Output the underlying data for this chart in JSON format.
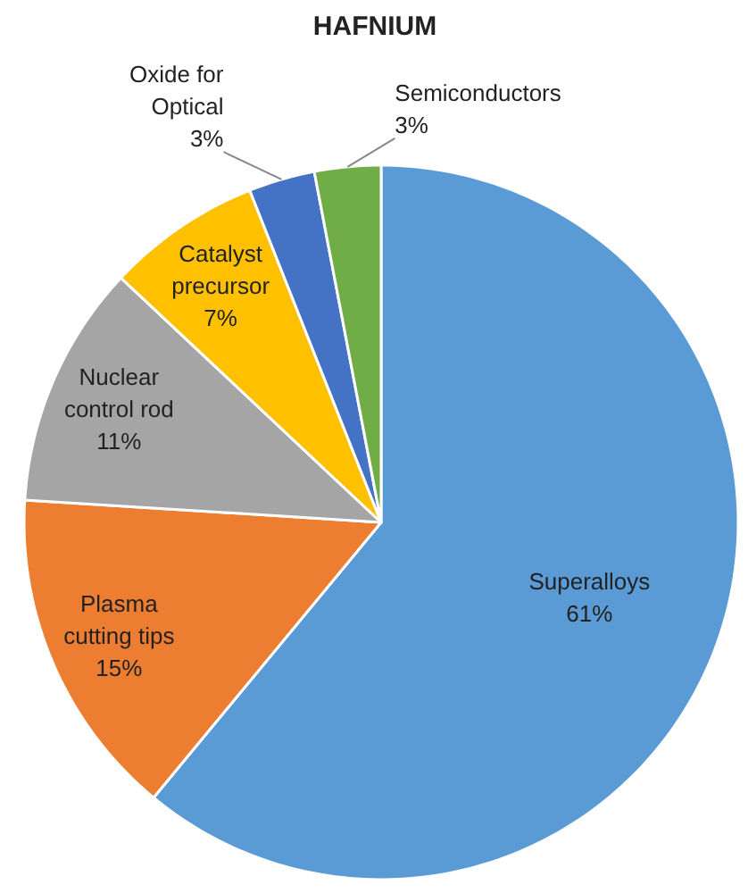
{
  "chart_data": {
    "type": "pie",
    "title": "HAFNIUM",
    "categories": [
      "Superalloys",
      "Plasma cutting tips",
      "Nuclear control rod",
      "Catalyst precursor",
      "Oxide for Optical",
      "Semiconductors"
    ],
    "values": [
      61,
      15,
      11,
      7,
      3,
      3
    ],
    "value_labels": [
      "61%",
      "15%",
      "11%",
      "7%",
      "3%",
      "3%"
    ],
    "colors": [
      "#5b9bd5",
      "#ed7d31",
      "#a5a5a5",
      "#ffc000",
      "#4472c4",
      "#70ad47"
    ]
  }
}
